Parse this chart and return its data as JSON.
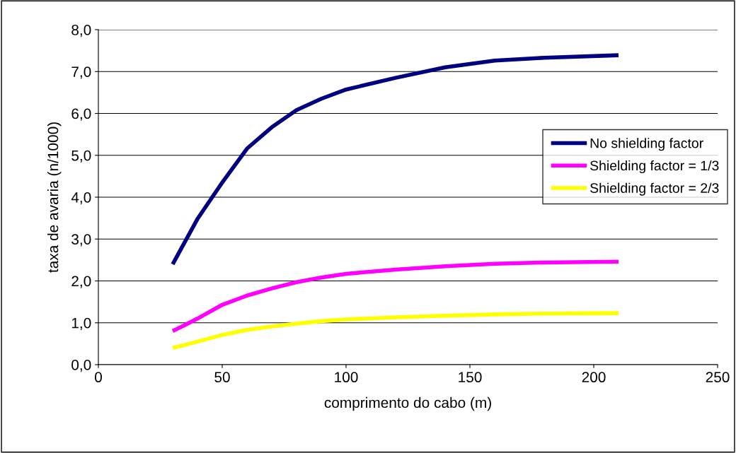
{
  "chart_data": {
    "type": "line",
    "xlabel": "comprimento do cabo (m)",
    "ylabel": "taxa de avaria (n/1000)",
    "x": [
      30,
      40,
      50,
      60,
      70,
      80,
      90,
      100,
      120,
      140,
      160,
      180,
      210
    ],
    "series": [
      {
        "name": "No shielding factor",
        "color": "#000080",
        "values": [
          2.4,
          3.48,
          4.35,
          5.16,
          5.67,
          6.08,
          6.35,
          6.57,
          6.85,
          7.1,
          7.26,
          7.33,
          7.39
        ]
      },
      {
        "name": "Shielding factor = 1/3",
        "color": "#ff00ff",
        "values": [
          0.8,
          1.1,
          1.43,
          1.65,
          1.82,
          1.97,
          2.08,
          2.17,
          2.27,
          2.35,
          2.41,
          2.44,
          2.46
        ]
      },
      {
        "name": "Shielding factor = 2/3",
        "color": "#ffff00",
        "values": [
          0.4,
          0.55,
          0.71,
          0.83,
          0.91,
          0.98,
          1.04,
          1.08,
          1.13,
          1.17,
          1.2,
          1.22,
          1.23
        ]
      }
    ],
    "xlim": [
      0,
      250
    ],
    "xticks": [
      0,
      50,
      100,
      150,
      200,
      250
    ],
    "ylim": [
      0,
      8
    ],
    "yticks": [
      {
        "value": 0,
        "label": "0,0"
      },
      {
        "value": 1,
        "label": "1,0"
      },
      {
        "value": 2,
        "label": "2,0"
      },
      {
        "value": 3,
        "label": "3,0"
      },
      {
        "value": 4,
        "label": "4,0"
      },
      {
        "value": 5,
        "label": "5,0"
      },
      {
        "value": 6,
        "label": "6,0"
      },
      {
        "value": 7,
        "label": "7,0"
      },
      {
        "value": 8,
        "label": "8,0"
      }
    ],
    "grid": "y",
    "legend": "right",
    "marker": "none",
    "line_style": "solid"
  }
}
